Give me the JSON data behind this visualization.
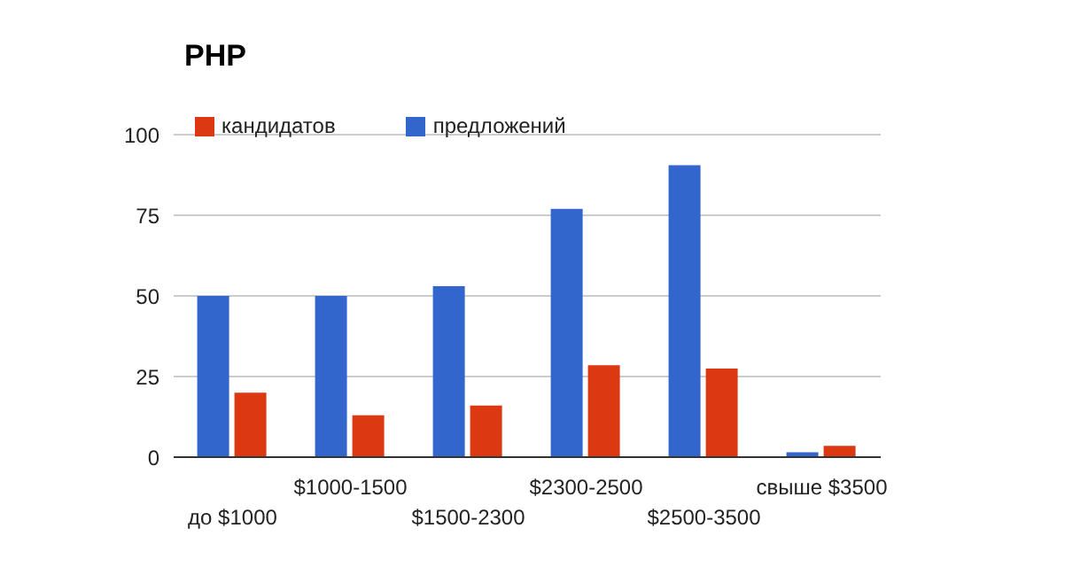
{
  "chart_data": {
    "type": "bar",
    "title": "PHP",
    "categories": [
      "до $1000",
      "$1000-1500",
      "$1500-2300",
      "$2300-2500",
      "$2500-3500",
      "свыше $3500"
    ],
    "series": [
      {
        "name": "предложений",
        "color": "#3366cc",
        "values": [
          50,
          50,
          53,
          77,
          90.5,
          1.5
        ]
      },
      {
        "name": "кандидатов",
        "color": "#dc3912",
        "values": [
          20,
          13,
          16,
          28.5,
          27.5,
          3.5
        ]
      }
    ],
    "ylim": [
      0,
      100
    ],
    "yticks": [
      0,
      25,
      50,
      75,
      100
    ],
    "grid": "y",
    "legend": "top left"
  }
}
